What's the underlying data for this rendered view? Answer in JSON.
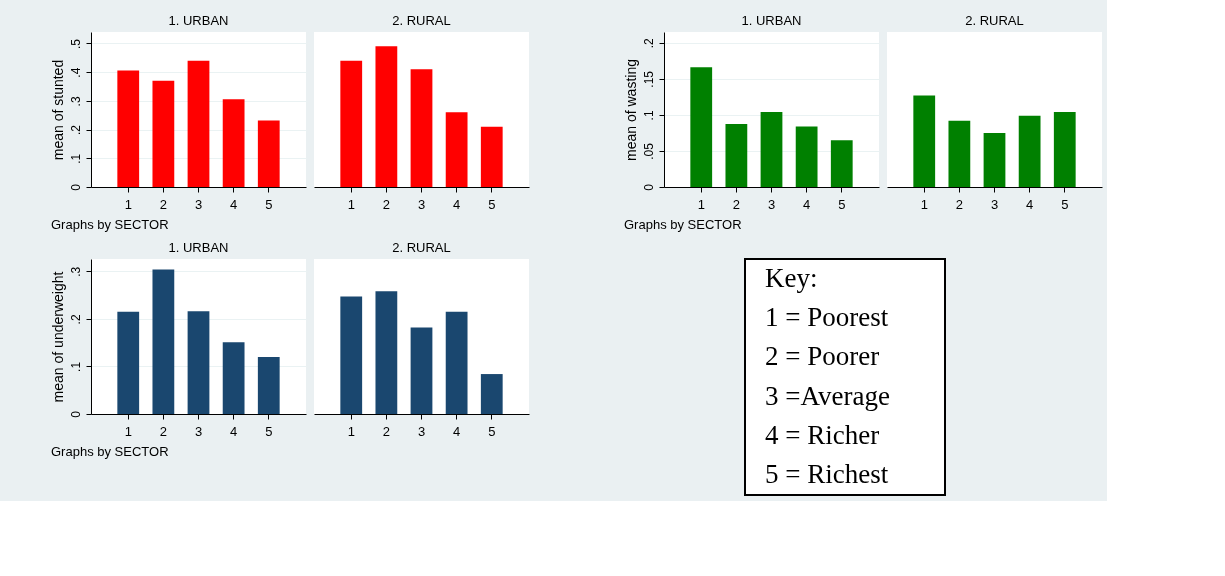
{
  "chart_data": [
    {
      "type": "bar",
      "title": "1. URBAN",
      "ylabel": "mean of stunted",
      "categories": [
        "1",
        "2",
        "3",
        "4",
        "5"
      ],
      "values": [
        0.406,
        0.37,
        0.44,
        0.306,
        0.232
      ],
      "color": "#ff0000",
      "ylim": [
        0,
        0.54
      ],
      "yticks": [
        0,
        {
          "value": 0.1,
          "label": ".1"
        },
        {
          "value": 0.2,
          "label": ".2"
        },
        {
          "value": 0.3,
          "label": ".3"
        },
        {
          "value": 0.4,
          "label": ".4"
        },
        {
          "value": 0.5,
          "label": ".5"
        }
      ],
      "grid": "y",
      "annotations": [
        "Graphs by SECTOR"
      ]
    },
    {
      "type": "bar",
      "title": "2. RURAL",
      "categories": [
        "1",
        "2",
        "3",
        "4",
        "5"
      ],
      "values": [
        0.44,
        0.49,
        0.41,
        0.26,
        0.21
      ],
      "color": "#ff0000",
      "ylim": [
        0,
        0.54
      ],
      "grid": "y",
      "tick_labels": "x"
    },
    {
      "type": "bar",
      "title": "1. URBAN",
      "ylabel": "mean of wasting",
      "categories": [
        "1",
        "2",
        "3",
        "4",
        "5"
      ],
      "values": [
        0.166,
        0.0875,
        0.104,
        0.084,
        0.065
      ],
      "color": "#008000",
      "ylim": [
        0,
        0.215
      ],
      "yticks": [
        0,
        {
          "value": 0.05,
          "label": ".05"
        },
        {
          "value": 0.1,
          "label": ".1"
        },
        {
          "value": 0.15,
          "label": ".15"
        },
        {
          "value": 0.2,
          "label": ".2"
        }
      ],
      "grid": "y",
      "annotations": [
        "Graphs by SECTOR"
      ]
    },
    {
      "type": "bar",
      "title": "2. RURAL",
      "categories": [
        "1",
        "2",
        "3",
        "4",
        "5"
      ],
      "values": [
        0.127,
        0.092,
        0.075,
        0.099,
        0.104
      ],
      "color": "#008000",
      "ylim": [
        0,
        0.215
      ],
      "grid": "y",
      "tick_labels": "x"
    },
    {
      "type": "bar",
      "title": "1. URBAN",
      "ylabel": "mean of underweight",
      "categories": [
        "1",
        "2",
        "3",
        "4",
        "5"
      ],
      "values": [
        0.215,
        0.304,
        0.216,
        0.151,
        0.12
      ],
      "color": "#1a476f",
      "ylim": [
        0,
        0.326
      ],
      "yticks": [
        0,
        {
          "value": 0.1,
          "label": ".1"
        },
        {
          "value": 0.2,
          "label": ".2"
        },
        {
          "value": 0.3,
          "label": ".3"
        }
      ],
      "grid": "y",
      "annotations": [
        "Graphs by SECTOR"
      ]
    },
    {
      "type": "bar",
      "title": "2. RURAL",
      "categories": [
        "1",
        "2",
        "3",
        "4",
        "5"
      ],
      "values": [
        0.247,
        0.258,
        0.182,
        0.215,
        0.084
      ],
      "color": "#1a476f",
      "ylim": [
        0,
        0.326
      ],
      "grid": "y",
      "tick_labels": "x"
    },
    {
      "type": "other",
      "annotations": [
        "Key:",
        "1 = Poorest",
        "2 = Poorer",
        "3 =Average",
        "4 = Richer",
        "5 = Richest"
      ]
    }
  ]
}
